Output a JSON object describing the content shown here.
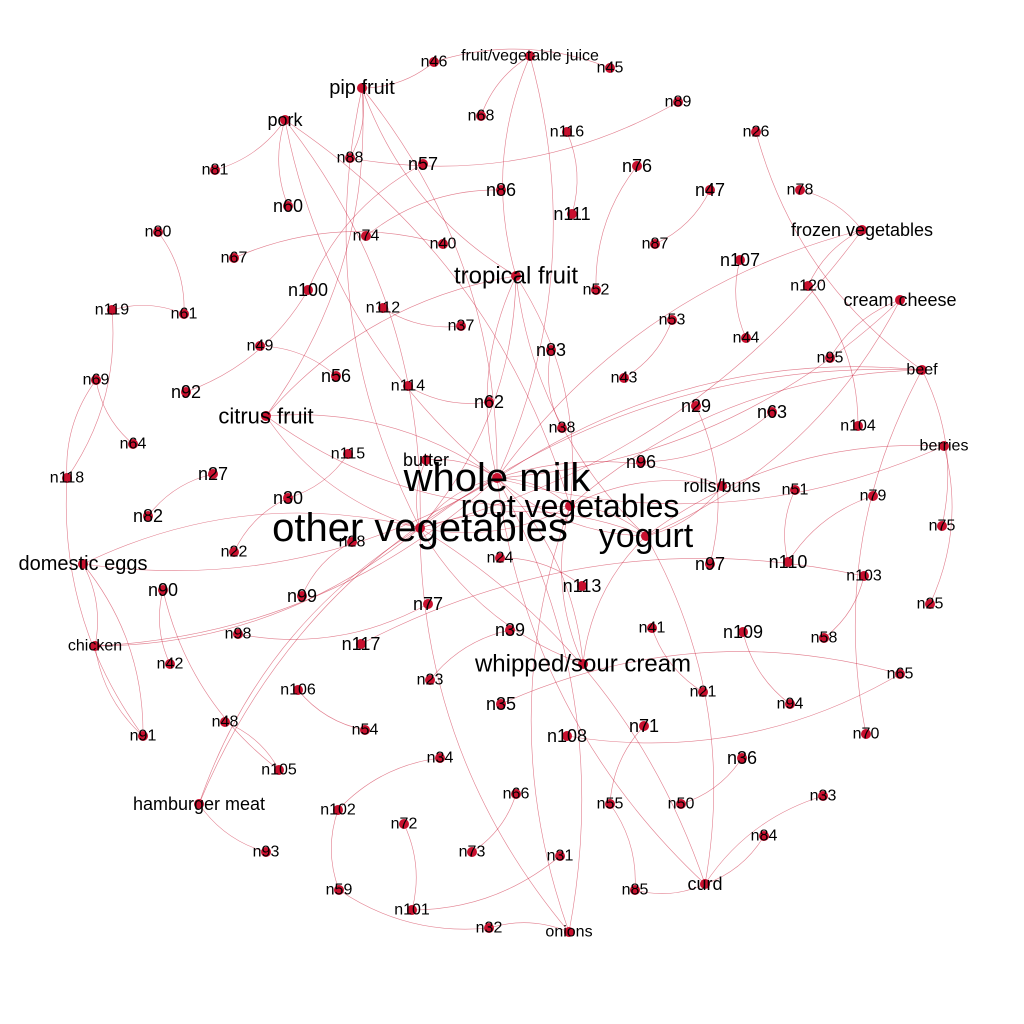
{
  "style": {
    "node_color": "#c8102e",
    "edge_color": "#c8102e"
  },
  "nodes": [
    {
      "id": "fruit/vegetable juice"
    },
    {
      "id": "n46"
    },
    {
      "id": "n45"
    },
    {
      "id": "pip fruit"
    },
    {
      "id": "n68"
    },
    {
      "id": "n89"
    },
    {
      "id": "pork"
    },
    {
      "id": "n116"
    },
    {
      "id": "n26"
    },
    {
      "id": "n88"
    },
    {
      "id": "n57"
    },
    {
      "id": "n76"
    },
    {
      "id": "n81"
    },
    {
      "id": "n86"
    },
    {
      "id": "n47"
    },
    {
      "id": "n78"
    },
    {
      "id": "n60"
    },
    {
      "id": "n111"
    },
    {
      "id": "frozen vegetables"
    },
    {
      "id": "n80"
    },
    {
      "id": "n74"
    },
    {
      "id": "n40"
    },
    {
      "id": "n87"
    },
    {
      "id": "n67"
    },
    {
      "id": "n107"
    },
    {
      "id": "tropical fruit"
    },
    {
      "id": "n120"
    },
    {
      "id": "n100"
    },
    {
      "id": "n52"
    },
    {
      "id": "cream cheese"
    },
    {
      "id": "n119"
    },
    {
      "id": "n61"
    },
    {
      "id": "n112"
    },
    {
      "id": "n53"
    },
    {
      "id": "n37"
    },
    {
      "id": "n44"
    },
    {
      "id": "n49"
    },
    {
      "id": "n83"
    },
    {
      "id": "n95"
    },
    {
      "id": "beef"
    },
    {
      "id": "n69"
    },
    {
      "id": "n56"
    },
    {
      "id": "n114"
    },
    {
      "id": "n43"
    },
    {
      "id": "n92"
    },
    {
      "id": "n62"
    },
    {
      "id": "n29"
    },
    {
      "id": "citrus fruit"
    },
    {
      "id": "n63"
    },
    {
      "id": "n104"
    },
    {
      "id": "n64"
    },
    {
      "id": "n38"
    },
    {
      "id": "berries"
    },
    {
      "id": "n115"
    },
    {
      "id": "butter"
    },
    {
      "id": "n96"
    },
    {
      "id": "n118"
    },
    {
      "id": "n27"
    },
    {
      "id": "whole milk"
    },
    {
      "id": "rolls/buns"
    },
    {
      "id": "n51"
    },
    {
      "id": "n79"
    },
    {
      "id": "n30"
    },
    {
      "id": "root vegetables"
    },
    {
      "id": "n82"
    },
    {
      "id": "n75"
    },
    {
      "id": "other vegetables"
    },
    {
      "id": "yogurt"
    },
    {
      "id": "n28"
    },
    {
      "id": "n22"
    },
    {
      "id": "n24"
    },
    {
      "id": "n97"
    },
    {
      "id": "n110"
    },
    {
      "id": "domestic eggs"
    },
    {
      "id": "n103"
    },
    {
      "id": "n90"
    },
    {
      "id": "n113"
    },
    {
      "id": "n99"
    },
    {
      "id": "n25"
    },
    {
      "id": "n77"
    },
    {
      "id": "n39"
    },
    {
      "id": "n41"
    },
    {
      "id": "n109"
    },
    {
      "id": "n98"
    },
    {
      "id": "n58"
    },
    {
      "id": "chicken"
    },
    {
      "id": "n117"
    },
    {
      "id": "n42"
    },
    {
      "id": "whipped/sour cream"
    },
    {
      "id": "n65"
    },
    {
      "id": "n23"
    },
    {
      "id": "n21"
    },
    {
      "id": "n106"
    },
    {
      "id": "n35"
    },
    {
      "id": "n94"
    },
    {
      "id": "n48"
    },
    {
      "id": "n54"
    },
    {
      "id": "n71"
    },
    {
      "id": "n91"
    },
    {
      "id": "n108"
    },
    {
      "id": "n70"
    },
    {
      "id": "n34"
    },
    {
      "id": "n36"
    },
    {
      "id": "n105"
    },
    {
      "id": "n66"
    },
    {
      "id": "n33"
    },
    {
      "id": "hamburger meat"
    },
    {
      "id": "n102"
    },
    {
      "id": "n55"
    },
    {
      "id": "n50"
    },
    {
      "id": "n72"
    },
    {
      "id": "n84"
    },
    {
      "id": "n93"
    },
    {
      "id": "n73"
    },
    {
      "id": "n31"
    },
    {
      "id": "curd"
    },
    {
      "id": "n59"
    },
    {
      "id": "n85"
    },
    {
      "id": "n101"
    },
    {
      "id": "n32"
    },
    {
      "id": "onions"
    }
  ],
  "edges": [
    [
      "whole milk",
      "other vegetables"
    ],
    [
      "whole milk",
      "root vegetables"
    ],
    [
      "whole milk",
      "yogurt"
    ],
    [
      "whole milk",
      "tropical fruit"
    ],
    [
      "whole milk",
      "citrus fruit"
    ],
    [
      "whole milk",
      "whipped/sour cream"
    ],
    [
      "whole milk",
      "butter"
    ],
    [
      "whole milk",
      "rolls/buns"
    ],
    [
      "whole milk",
      "pip fruit"
    ],
    [
      "whole milk",
      "domestic eggs"
    ],
    [
      "whole milk",
      "curd"
    ],
    [
      "whole milk",
      "pork"
    ],
    [
      "whole milk",
      "fruit/vegetable juice"
    ],
    [
      "whole milk",
      "frozen vegetables"
    ],
    [
      "whole milk",
      "cream cheese"
    ],
    [
      "whole milk",
      "beef"
    ],
    [
      "whole milk",
      "berries"
    ],
    [
      "whole milk",
      "chicken"
    ],
    [
      "whole milk",
      "hamburger meat"
    ],
    [
      "whole milk",
      "onions"
    ],
    [
      "other vegetables",
      "root vegetables"
    ],
    [
      "other vegetables",
      "yogurt"
    ],
    [
      "other vegetables",
      "tropical fruit"
    ],
    [
      "other vegetables",
      "citrus fruit"
    ],
    [
      "other vegetables",
      "whipped/sour cream"
    ],
    [
      "other vegetables",
      "butter"
    ],
    [
      "other vegetables",
      "domestic eggs"
    ],
    [
      "other vegetables",
      "pip fruit"
    ],
    [
      "other vegetables",
      "pork"
    ],
    [
      "other vegetables",
      "chicken"
    ],
    [
      "other vegetables",
      "hamburger meat"
    ],
    [
      "other vegetables",
      "beef"
    ],
    [
      "other vegetables",
      "onions"
    ],
    [
      "other vegetables",
      "curd"
    ],
    [
      "other vegetables",
      "frozen vegetables"
    ],
    [
      "root vegetables",
      "yogurt"
    ],
    [
      "root vegetables",
      "tropical fruit"
    ],
    [
      "root vegetables",
      "citrus fruit"
    ],
    [
      "root vegetables",
      "whipped/sour cream"
    ],
    [
      "root vegetables",
      "beef"
    ],
    [
      "root vegetables",
      "onions"
    ],
    [
      "root vegetables",
      "rolls/buns"
    ],
    [
      "root vegetables",
      "pork"
    ],
    [
      "yogurt",
      "tropical fruit"
    ],
    [
      "yogurt",
      "whipped/sour cream"
    ],
    [
      "yogurt",
      "curd"
    ],
    [
      "yogurt",
      "rolls/buns"
    ],
    [
      "yogurt",
      "berries"
    ],
    [
      "yogurt",
      "cream cheese"
    ],
    [
      "tropical fruit",
      "pip fruit"
    ],
    [
      "tropical fruit",
      "citrus fruit"
    ],
    [
      "tropical fruit",
      "fruit/vegetable juice"
    ],
    [
      "citrus fruit",
      "pip fruit"
    ],
    [
      "domestic eggs",
      "chicken"
    ],
    [
      "hamburger meat",
      "n93"
    ],
    [
      "pork",
      "n81"
    ],
    [
      "pork",
      "n60"
    ],
    [
      "pip fruit",
      "n88"
    ],
    [
      "pip fruit",
      "n46"
    ],
    [
      "n46",
      "n45"
    ],
    [
      "fruit/vegetable juice",
      "n68"
    ],
    [
      "n89",
      "n88"
    ],
    [
      "n26",
      "beef"
    ],
    [
      "n78",
      "frozen vegetables"
    ],
    [
      "frozen vegetables",
      "n120"
    ],
    [
      "n120",
      "n104"
    ],
    [
      "cream cheese",
      "n95"
    ],
    [
      "beef",
      "n75"
    ],
    [
      "beef",
      "n70"
    ],
    [
      "berries",
      "n25"
    ],
    [
      "n118",
      "n119"
    ],
    [
      "n118",
      "n69"
    ],
    [
      "n118",
      "n91"
    ],
    [
      "n119",
      "n61"
    ],
    [
      "n69",
      "n64"
    ],
    [
      "domestic eggs",
      "n91"
    ],
    [
      "chicken",
      "n91"
    ],
    [
      "n42",
      "n90"
    ],
    [
      "n105",
      "n48"
    ],
    [
      "n105",
      "n90"
    ],
    [
      "n59",
      "n32"
    ],
    [
      "n32",
      "onions"
    ],
    [
      "n101",
      "n31"
    ],
    [
      "curd",
      "n85"
    ],
    [
      "curd",
      "n84"
    ],
    [
      "curd",
      "n33"
    ],
    [
      "n73",
      "n66"
    ],
    [
      "n55",
      "n71"
    ],
    [
      "n50",
      "n36"
    ],
    [
      "n65",
      "n108"
    ],
    [
      "n65",
      "n35"
    ],
    [
      "n103",
      "n58"
    ],
    [
      "n103",
      "n117"
    ],
    [
      "n110",
      "n79"
    ],
    [
      "n109",
      "n94"
    ],
    [
      "n21",
      "n41"
    ],
    [
      "n86",
      "n74"
    ],
    [
      "n116",
      "n111"
    ],
    [
      "n76",
      "n52"
    ],
    [
      "n47",
      "n87"
    ],
    [
      "n107",
      "n44"
    ],
    [
      "n53",
      "n43"
    ],
    [
      "n83",
      "n38"
    ],
    [
      "n62",
      "n114"
    ],
    [
      "n56",
      "n49"
    ],
    [
      "n37",
      "n112"
    ],
    [
      "n40",
      "n67"
    ],
    [
      "n100",
      "n92"
    ],
    [
      "n57",
      "n100"
    ],
    [
      "n80",
      "n61"
    ],
    [
      "n27",
      "n82"
    ],
    [
      "n22",
      "n30"
    ],
    [
      "n28",
      "n99"
    ],
    [
      "n24",
      "n113"
    ],
    [
      "n39",
      "n23"
    ],
    [
      "n54",
      "n106"
    ],
    [
      "n34",
      "n102"
    ],
    [
      "n72",
      "n101"
    ],
    [
      "n96",
      "n63"
    ],
    [
      "n29",
      "n97"
    ],
    [
      "n51",
      "n110"
    ],
    [
      "n115",
      "n30"
    ],
    [
      "n98",
      "n77"
    ],
    [
      "n59",
      "n102"
    ],
    [
      "n85",
      "n55"
    ]
  ]
}
